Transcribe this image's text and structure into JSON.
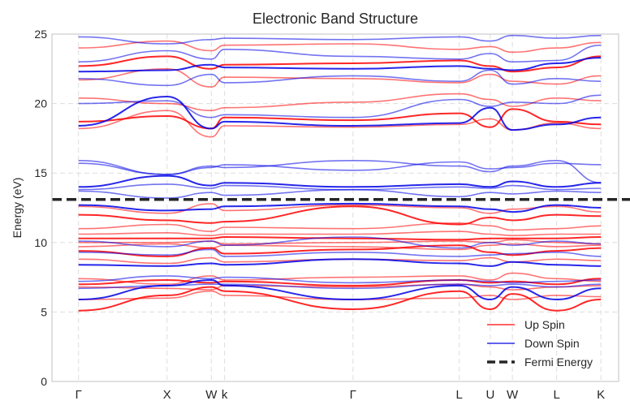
{
  "chart_data": {
    "type": "line",
    "title": "Electronic Band Structure",
    "xlabel": "",
    "ylabel": "Energy (eV)",
    "ylim": [
      0,
      25
    ],
    "yticks": [
      0,
      5,
      10,
      15,
      20,
      25
    ],
    "grid": true,
    "legend_position": "bottom-right",
    "kpath": {
      "labels": [
        "Γ",
        "X",
        "W",
        "k",
        "Γ",
        "L",
        "U",
        "W",
        "L",
        "K"
      ],
      "positions": [
        0.0,
        1.0,
        1.5,
        1.65,
        3.1,
        4.3,
        4.65,
        4.9,
        5.4,
        5.9
      ]
    },
    "x_range": [
      -0.3,
      6.1
    ],
    "fermi_energy": 13.1,
    "series": [
      {
        "name": "Up Spin",
        "color": "#ff0000",
        "bands": [
          {
            "value": 5.1,
            "y": [
              5.1,
              6.2,
              6.8,
              6.5,
              5.2,
              6.5,
              5.2,
              6.3,
              5.1,
              5.9
            ]
          },
          {
            "value": 5.9,
            "y": [
              5.9,
              6.0,
              6.5,
              6.2,
              5.9,
              6.0,
              6.2,
              5.9,
              6.2,
              6.1
            ]
          },
          {
            "value": 6.8,
            "y": [
              6.8,
              6.7,
              6.6,
              6.9,
              6.8,
              7.0,
              6.8,
              6.6,
              6.8,
              6.9
            ]
          },
          {
            "value": 7.0,
            "y": [
              7.0,
              7.3,
              7.1,
              7.2,
              6.9,
              7.3,
              7.1,
              7.2,
              7.0,
              7.4
            ]
          },
          {
            "value": 7.4,
            "y": [
              7.4,
              7.0,
              7.6,
              7.3,
              7.5,
              7.6,
              7.3,
              7.8,
              7.4,
              7.2
            ]
          },
          {
            "value": 8.8,
            "y": [
              8.8,
              8.5,
              8.9,
              8.6,
              8.8,
              8.7,
              8.9,
              8.6,
              8.8,
              8.7
            ]
          },
          {
            "value": 9.4,
            "y": [
              9.4,
              9.0,
              9.6,
              9.2,
              9.5,
              9.8,
              9.3,
              9.1,
              9.4,
              9.6
            ]
          },
          {
            "value": 9.7,
            "y": [
              9.7,
              9.9,
              9.6,
              9.8,
              9.7,
              9.5,
              9.8,
              9.9,
              9.7,
              9.8
            ]
          },
          {
            "value": 10.0,
            "y": [
              10.0,
              10.0,
              10.1,
              9.9,
              10.0,
              10.1,
              10.0,
              10.2,
              10.0,
              9.9
            ]
          },
          {
            "value": 10.3,
            "y": [
              10.3,
              10.3,
              10.3,
              10.4,
              10.3,
              10.2,
              10.3,
              10.3,
              10.3,
              10.4
            ]
          },
          {
            "value": 10.6,
            "y": [
              10.6,
              10.7,
              10.5,
              10.6,
              10.6,
              10.8,
              10.6,
              10.5,
              10.6,
              10.6
            ]
          },
          {
            "value": 11.0,
            "y": [
              11.0,
              11.3,
              10.8,
              11.1,
              11.0,
              11.4,
              11.2,
              10.9,
              11.0,
              11.2
            ]
          },
          {
            "value": 12.0,
            "y": [
              12.0,
              11.6,
              11.4,
              11.5,
              12.6,
              11.3,
              11.8,
              11.6,
              12.0,
              11.9
            ]
          },
          {
            "value": 12.6,
            "y": [
              12.6,
              12.1,
              12.8,
              12.3,
              12.7,
              12.5,
              12.1,
              12.4,
              12.6,
              12.2
            ]
          },
          {
            "value": 18.2,
            "y": [
              18.2,
              19.5,
              17.6,
              18.4,
              18.3,
              18.5,
              18.9,
              18.1,
              18.6,
              18.2
            ]
          },
          {
            "value": 18.7,
            "y": [
              18.7,
              19.1,
              18.2,
              19.0,
              18.8,
              19.3,
              18.3,
              19.6,
              18.7,
              18.5
            ]
          },
          {
            "value": 20.4,
            "y": [
              20.4,
              20.0,
              19.5,
              19.7,
              20.1,
              20.7,
              20.3,
              19.8,
              20.4,
              20.2
            ]
          },
          {
            "value": 21.7,
            "y": [
              21.7,
              22.5,
              21.2,
              21.9,
              21.8,
              21.5,
              22.1,
              21.6,
              21.4,
              22.0
            ]
          },
          {
            "value": 22.7,
            "y": [
              22.7,
              23.4,
              22.5,
              22.8,
              22.9,
              23.1,
              22.7,
              22.3,
              22.6,
              23.4
            ]
          },
          {
            "value": 24.0,
            "y": [
              24.0,
              24.5,
              23.8,
              24.2,
              24.3,
              23.9,
              24.1,
              23.7,
              24.0,
              24.4
            ]
          }
        ]
      },
      {
        "name": "Down Spin",
        "color": "#0000e6",
        "bands": [
          {
            "value": 5.9,
            "y": [
              5.9,
              6.9,
              7.3,
              6.9,
              5.9,
              6.9,
              5.9,
              6.8,
              5.9,
              6.7
            ]
          },
          {
            "value": 6.7,
            "y": [
              6.7,
              6.9,
              7.0,
              7.0,
              6.7,
              7.0,
              6.9,
              7.0,
              6.8,
              7.0
            ]
          },
          {
            "value": 7.2,
            "y": [
              7.2,
              7.6,
              7.4,
              7.5,
              7.1,
              7.3,
              7.2,
              7.1,
              7.2,
              7.3
            ]
          },
          {
            "value": 8.4,
            "y": [
              8.4,
              8.3,
              8.5,
              8.4,
              8.8,
              8.5,
              8.3,
              8.6,
              8.4,
              8.3
            ]
          },
          {
            "value": 9.3,
            "y": [
              9.3,
              9.1,
              9.5,
              9.0,
              9.3,
              9.0,
              9.1,
              9.2,
              9.3,
              9.0
            ]
          },
          {
            "value": 10.1,
            "y": [
              10.1,
              9.7,
              10.1,
              9.8,
              10.4,
              9.6,
              10.0,
              9.8,
              10.1,
              9.9
            ]
          },
          {
            "value": 12.7,
            "y": [
              12.7,
              12.3,
              12.4,
              12.6,
              12.8,
              12.6,
              12.4,
              12.2,
              12.7,
              12.5
            ]
          },
          {
            "value": 13.7,
            "y": [
              13.7,
              13.2,
              13.6,
              13.4,
              13.8,
              13.3,
              13.6,
              13.5,
              13.7,
              13.6
            ]
          },
          {
            "value": 13.8,
            "y": [
              13.8,
              14.2,
              13.9,
              14.1,
              13.8,
              14.0,
              13.9,
              14.1,
              13.8,
              13.9
            ]
          },
          {
            "value": 14.0,
            "y": [
              14.0,
              14.8,
              14.1,
              14.3,
              14.0,
              14.2,
              14.0,
              14.4,
              14.0,
              14.3
            ]
          },
          {
            "value": 15.9,
            "y": [
              15.9,
              14.9,
              15.5,
              15.4,
              15.9,
              15.5,
              15.1,
              15.5,
              15.9,
              14.3
            ]
          },
          {
            "value": 15.7,
            "y": [
              15.7,
              14.9,
              15.4,
              15.6,
              15.2,
              15.8,
              15.3,
              15.4,
              15.7,
              15.6
            ]
          },
          {
            "value": 18.4,
            "y": [
              18.4,
              20.5,
              18.2,
              18.7,
              18.4,
              18.6,
              19.7,
              18.1,
              18.5,
              19.0
            ]
          },
          {
            "value": 20.0,
            "y": [
              20.0,
              20.2,
              19.0,
              19.2,
              19.0,
              20.3,
              19.8,
              20.1,
              20.0,
              20.6
            ]
          },
          {
            "value": 21.8,
            "y": [
              21.8,
              21.3,
              22.1,
              21.5,
              22.0,
              21.6,
              22.4,
              21.4,
              21.8,
              21.6
            ]
          },
          {
            "value": 22.3,
            "y": [
              22.3,
              22.4,
              22.8,
              22.6,
              22.5,
              22.7,
              22.5,
              22.4,
              22.9,
              23.3
            ]
          },
          {
            "value": 23.0,
            "y": [
              23.0,
              23.8,
              23.2,
              23.9,
              23.4,
              23.2,
              23.6,
              23.0,
              23.1,
              24.2
            ]
          },
          {
            "value": 24.8,
            "y": [
              24.8,
              24.3,
              24.6,
              24.7,
              24.6,
              24.8,
              24.5,
              24.9,
              24.7,
              24.9
            ]
          }
        ]
      }
    ],
    "legend": [
      {
        "label": "Up Spin",
        "color": "#ff0000",
        "style": "solid"
      },
      {
        "label": "Down Spin",
        "color": "#0000e6",
        "style": "solid"
      },
      {
        "label": "Fermi Energy",
        "color": "#262626",
        "style": "dashed"
      }
    ]
  }
}
